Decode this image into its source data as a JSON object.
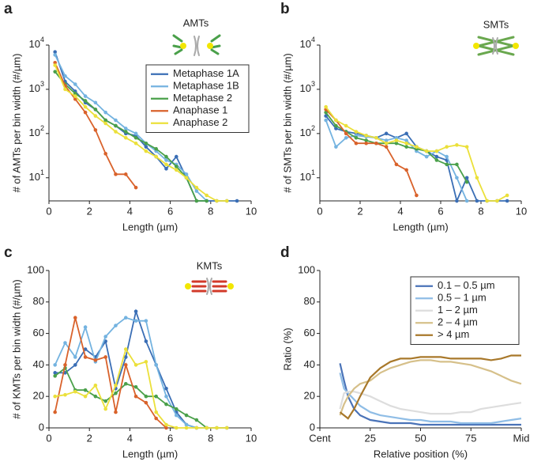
{
  "chart_data": [
    {
      "type": "line",
      "panel_label": "a",
      "annotation": "AMTs",
      "xlabel": "Length (µm)",
      "ylabel": "# of AMTs per bin width (#/µm)",
      "log_y": true,
      "markers": true,
      "legend": true,
      "legend_position": "upper right",
      "xlim": [
        0,
        10
      ],
      "xticks": [
        0,
        2,
        4,
        6,
        8,
        10
      ],
      "ylim": [
        3,
        10000
      ],
      "yticks": [
        {
          "value": 10,
          "label": "10^1"
        },
        {
          "value": 100,
          "label": "10^2"
        },
        {
          "value": 1000,
          "label": "10^3"
        },
        {
          "value": 10000,
          "label": "10^4"
        }
      ],
      "x": [
        0.3,
        0.8,
        1.3,
        1.8,
        2.3,
        2.8,
        3.3,
        3.8,
        4.3,
        4.8,
        5.3,
        5.8,
        6.3,
        6.8,
        7.3,
        7.8,
        8.3,
        8.8,
        9.3
      ],
      "series": [
        {
          "name": "Metaphase 1A",
          "color": "#3a6eb5",
          "values": [
            7000,
            1500,
            900,
            500,
            350,
            200,
            150,
            100,
            90,
            50,
            30,
            16,
            30,
            10,
            3,
            3,
            3,
            3,
            3
          ]
        },
        {
          "name": "Metaphase 1B",
          "color": "#74b3e0",
          "values": [
            6000,
            2000,
            1300,
            700,
            500,
            300,
            200,
            130,
            100,
            60,
            40,
            25,
            20,
            12,
            5,
            3,
            null,
            null,
            null
          ]
        },
        {
          "name": "Metaphase 2",
          "color": "#4aa04a",
          "values": [
            2500,
            1300,
            800,
            550,
            350,
            200,
            150,
            110,
            80,
            60,
            45,
            30,
            18,
            10,
            3,
            3,
            null,
            null,
            null
          ]
        },
        {
          "name": "Anaphase 1",
          "color": "#d9622b",
          "values": [
            4000,
            1200,
            600,
            300,
            120,
            35,
            12,
            12,
            6,
            null,
            null,
            null,
            null,
            null,
            null,
            null,
            null,
            null,
            null
          ]
        },
        {
          "name": "Anaphase 2",
          "color": "#ebe03a",
          "values": [
            3500,
            1000,
            700,
            400,
            250,
            170,
            110,
            80,
            60,
            40,
            30,
            20,
            15,
            10,
            6,
            4,
            3,
            3,
            null
          ]
        }
      ]
    },
    {
      "type": "line",
      "panel_label": "b",
      "annotation": "SMTs",
      "xlabel": "Length (µm)",
      "ylabel": "# of SMTs per bin width (#/µm)",
      "log_y": true,
      "markers": true,
      "legend": false,
      "xlim": [
        0,
        10
      ],
      "xticks": [
        0,
        2,
        4,
        6,
        8,
        10
      ],
      "ylim": [
        3,
        10000
      ],
      "yticks": [
        {
          "value": 10,
          "label": "10^1"
        },
        {
          "value": 100,
          "label": "10^2"
        },
        {
          "value": 1000,
          "label": "10^3"
        },
        {
          "value": 10000,
          "label": "10^4"
        }
      ],
      "x": [
        0.3,
        0.8,
        1.3,
        1.8,
        2.3,
        2.8,
        3.3,
        3.8,
        4.3,
        4.8,
        5.3,
        5.8,
        6.3,
        6.8,
        7.3,
        7.8,
        8.3,
        8.8,
        9.3
      ],
      "series": [
        {
          "color": "#3a6eb5",
          "values": [
            250,
            130,
            110,
            100,
            90,
            80,
            100,
            80,
            100,
            50,
            40,
            30,
            25,
            3,
            10,
            3,
            3,
            3,
            3
          ]
        },
        {
          "color": "#74b3e0",
          "values": [
            200,
            50,
            80,
            90,
            85,
            80,
            70,
            80,
            70,
            40,
            30,
            40,
            30,
            10,
            3,
            null,
            null,
            null,
            null
          ]
        },
        {
          "color": "#4aa04a",
          "values": [
            300,
            150,
            110,
            80,
            70,
            60,
            60,
            60,
            50,
            45,
            40,
            25,
            20,
            20,
            8,
            null,
            null,
            null,
            null
          ]
        },
        {
          "color": "#d9622b",
          "values": [
            350,
            200,
            100,
            60,
            60,
            60,
            50,
            20,
            15,
            4,
            null,
            null,
            null,
            null,
            null,
            null,
            null,
            null,
            null
          ]
        },
        {
          "color": "#ebe03a",
          "values": [
            400,
            200,
            150,
            110,
            90,
            80,
            60,
            70,
            60,
            50,
            40,
            40,
            50,
            55,
            50,
            10,
            3,
            3,
            4
          ]
        }
      ]
    },
    {
      "type": "line",
      "panel_label": "c",
      "annotation": "KMTs",
      "xlabel": "Length (µm)",
      "ylabel": "# of KMTs per bin width (#/µm)",
      "log_y": false,
      "markers": true,
      "legend": false,
      "xlim": [
        0,
        10
      ],
      "xticks": [
        0,
        2,
        4,
        6,
        8,
        10
      ],
      "ylim": [
        0,
        100
      ],
      "yticks": [
        0,
        20,
        40,
        60,
        80,
        100
      ],
      "x": [
        0.3,
        0.8,
        1.3,
        1.8,
        2.3,
        2.8,
        3.3,
        3.8,
        4.3,
        4.8,
        5.3,
        5.8,
        6.3,
        6.8,
        7.3,
        7.8,
        8.3,
        8.8,
        9.3
      ],
      "series": [
        {
          "color": "#3a6eb5",
          "values": [
            35,
            35,
            40,
            50,
            45,
            55,
            25,
            45,
            74,
            55,
            40,
            25,
            10,
            2,
            0,
            0,
            0,
            0,
            null
          ]
        },
        {
          "color": "#74b3e0",
          "values": [
            40,
            54,
            45,
            64,
            42,
            58,
            65,
            70,
            68,
            68,
            40,
            20,
            8,
            2,
            0,
            0,
            null,
            null,
            null
          ]
        },
        {
          "color": "#4aa04a",
          "values": [
            33,
            38,
            24,
            24,
            20,
            17,
            22,
            28,
            26,
            20,
            20,
            15,
            12,
            8,
            5,
            0,
            null,
            null,
            null
          ]
        },
        {
          "color": "#d9622b",
          "values": [
            10,
            40,
            70,
            45,
            43,
            45,
            10,
            40,
            20,
            16,
            6,
            0,
            null,
            null,
            null,
            null,
            null,
            null,
            null
          ]
        },
        {
          "color": "#ebe03a",
          "values": [
            20,
            21,
            23,
            20,
            27,
            12,
            27,
            50,
            40,
            42,
            10,
            2,
            0,
            0,
            0,
            0,
            0,
            0,
            null
          ]
        }
      ]
    },
    {
      "type": "line",
      "panel_label": "d",
      "xlabel": "Relative position (%)",
      "ylabel": "Ratio (%)",
      "log_y": false,
      "markers": false,
      "legend": true,
      "legend_position": "upper right",
      "xlim": [
        0,
        100
      ],
      "xticks": [
        {
          "value": 0,
          "label": "Cent"
        },
        25,
        50,
        75,
        {
          "value": 100,
          "label": "Mid"
        }
      ],
      "ylim": [
        0,
        100
      ],
      "yticks": [
        0,
        20,
        40,
        60,
        80,
        100
      ],
      "x": [
        10,
        12,
        14,
        17,
        20,
        25,
        30,
        35,
        40,
        45,
        50,
        55,
        60,
        65,
        70,
        75,
        80,
        85,
        90,
        95,
        100
      ],
      "series": [
        {
          "name": "0.1 – 0.5 µm",
          "color": "#4a73b8",
          "values": [
            41,
            30,
            20,
            12,
            8,
            5,
            4,
            3,
            3,
            3,
            2,
            2,
            2,
            2,
            2,
            2,
            2,
            2,
            2,
            2,
            2
          ]
        },
        {
          "name": "0.5 – 1 µm",
          "color": "#8fbde6",
          "values": [
            35,
            25,
            22,
            18,
            14,
            10,
            8,
            7,
            6,
            5,
            5,
            4,
            4,
            4,
            3,
            3,
            3,
            3,
            4,
            5,
            6
          ]
        },
        {
          "name": "1 – 2 µm",
          "color": "#dddddd",
          "values": [
            12,
            22,
            23,
            23,
            22,
            20,
            17,
            14,
            12,
            11,
            10,
            9,
            9,
            9,
            10,
            10,
            12,
            13,
            14,
            15,
            16
          ]
        },
        {
          "name": "2 – 4 µm",
          "color": "#d6c08a",
          "values": [
            8,
            15,
            20,
            25,
            28,
            30,
            35,
            38,
            40,
            42,
            43,
            43,
            42,
            42,
            41,
            40,
            38,
            36,
            33,
            30,
            28
          ]
        },
        {
          "name": "> 4 µm",
          "color": "#a8782a",
          "values": [
            10,
            8,
            6,
            12,
            20,
            32,
            38,
            42,
            44,
            44,
            45,
            45,
            45,
            44,
            44,
            44,
            44,
            43,
            44,
            46,
            46
          ]
        }
      ]
    }
  ]
}
